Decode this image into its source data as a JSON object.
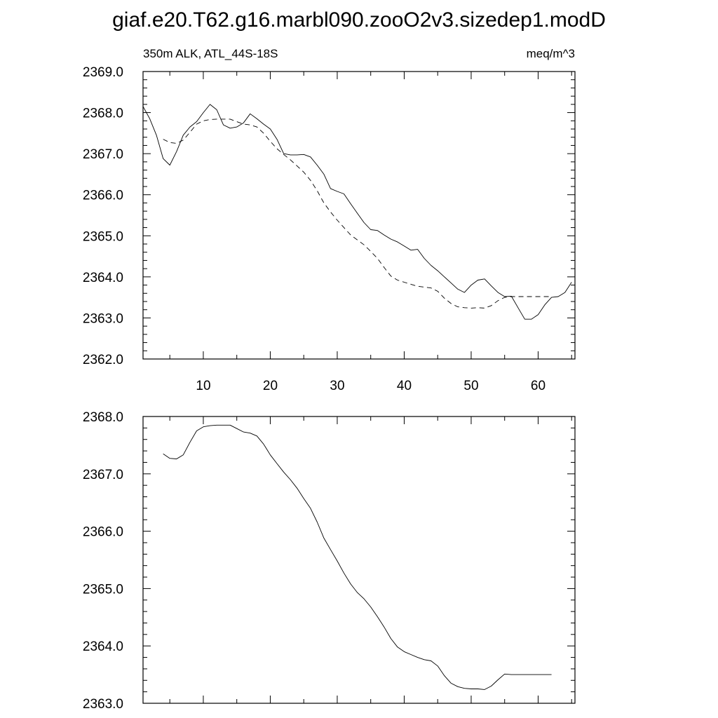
{
  "figure": {
    "title": "giaf.e20.T62.g16.marbl090.zooO2v3.sizedep1.modD"
  },
  "chart_data": [
    {
      "type": "line",
      "left_label": "350m ALK, ATL_44S-18S",
      "right_label": "meq/m^3",
      "xlim": [
        1,
        65.5
      ],
      "ylim": [
        2362.0,
        2369.0
      ],
      "xticks": [
        10,
        20,
        30,
        40,
        50,
        60
      ],
      "xtick_labels": [
        "10",
        "20",
        "30",
        "40",
        "50",
        "60"
      ],
      "yticks": [
        2362.0,
        2363.0,
        2364.0,
        2365.0,
        2366.0,
        2367.0,
        2368.0,
        2369.0
      ],
      "ytick_labels": [
        "2362.0",
        "2363.0",
        "2364.0",
        "2365.0",
        "2366.0",
        "2367.0",
        "2368.0",
        "2369.0"
      ],
      "grid": false,
      "series": [
        {
          "style": "solid",
          "x": [
            1,
            2,
            3,
            4,
            5,
            6,
            7,
            8,
            9,
            10,
            11,
            12,
            13,
            14,
            15,
            16,
            17,
            18,
            19,
            20,
            21,
            22,
            23,
            24,
            25,
            26,
            27,
            28,
            29,
            30,
            31,
            32,
            33,
            34,
            35,
            36,
            37,
            38,
            39,
            40,
            41,
            42,
            43,
            44,
            45,
            46,
            47,
            48,
            49,
            50,
            51,
            52,
            53,
            54,
            55,
            56,
            57,
            58,
            59,
            60,
            61,
            62,
            63,
            64,
            65
          ],
          "values": [
            2368.15,
            2367.85,
            2367.45,
            2366.88,
            2366.72,
            2367.05,
            2367.45,
            2367.65,
            2367.78,
            2368.0,
            2368.2,
            2368.07,
            2367.7,
            2367.62,
            2367.65,
            2367.75,
            2367.97,
            2367.85,
            2367.72,
            2367.6,
            2367.35,
            2367.0,
            2366.97,
            2366.97,
            2366.98,
            2366.92,
            2366.72,
            2366.5,
            2366.15,
            2366.08,
            2366.02,
            2365.78,
            2365.55,
            2365.32,
            2365.15,
            2365.13,
            2365.02,
            2364.92,
            2364.85,
            2364.75,
            2364.65,
            2364.67,
            2364.45,
            2364.28,
            2364.15,
            2364.0,
            2363.85,
            2363.7,
            2363.62,
            2363.8,
            2363.92,
            2363.95,
            2363.78,
            2363.62,
            2363.52,
            2363.53,
            2363.25,
            2362.97,
            2362.97,
            2363.08,
            2363.32,
            2363.5,
            2363.52,
            2363.62,
            2363.87
          ]
        },
        {
          "style": "dashed",
          "x": [
            4,
            5,
            6,
            7,
            8,
            9,
            10,
            11,
            12,
            13,
            14,
            15,
            16,
            17,
            18,
            19,
            20,
            21,
            22,
            23,
            24,
            25,
            26,
            27,
            28,
            29,
            30,
            31,
            32,
            33,
            34,
            35,
            36,
            37,
            38,
            39,
            40,
            41,
            42,
            43,
            44,
            45,
            46,
            47,
            48,
            49,
            50,
            51,
            52,
            53,
            54,
            55,
            56,
            57,
            58,
            59,
            60,
            61,
            62
          ],
          "values": [
            2367.35,
            2367.27,
            2367.25,
            2367.33,
            2367.52,
            2367.72,
            2367.8,
            2367.83,
            2367.84,
            2367.84,
            2367.84,
            2367.78,
            2367.72,
            2367.7,
            2367.65,
            2367.5,
            2367.3,
            2367.12,
            2366.98,
            2366.85,
            2366.7,
            2366.55,
            2366.35,
            2366.1,
            2365.8,
            2365.58,
            2365.38,
            2365.2,
            2365.02,
            2364.9,
            2364.78,
            2364.62,
            2364.45,
            2364.23,
            2364.02,
            2363.92,
            2363.87,
            2363.82,
            2363.77,
            2363.75,
            2363.73,
            2363.65,
            2363.48,
            2363.35,
            2363.27,
            2363.25,
            2363.24,
            2363.25,
            2363.24,
            2363.3,
            2363.42,
            2363.5,
            2363.52,
            2363.52,
            2363.52,
            2363.52,
            2363.52,
            2363.52,
            2363.52
          ]
        }
      ]
    },
    {
      "type": "line",
      "xlim": [
        1,
        65.5
      ],
      "ylim": [
        2363.0,
        2368.0
      ],
      "xticks": [
        10,
        20,
        30,
        40,
        50,
        60
      ],
      "yticks": [
        2363.0,
        2364.0,
        2365.0,
        2366.0,
        2367.0,
        2368.0
      ],
      "ytick_labels": [
        "2363.0",
        "2364.0",
        "2365.0",
        "2366.0",
        "2367.0",
        "2368.0"
      ],
      "grid": false,
      "series": [
        {
          "style": "solid",
          "x": [
            4,
            5,
            6,
            7,
            8,
            9,
            10,
            11,
            12,
            13,
            14,
            15,
            16,
            17,
            18,
            19,
            20,
            21,
            22,
            23,
            24,
            25,
            26,
            27,
            28,
            29,
            30,
            31,
            32,
            33,
            34,
            35,
            36,
            37,
            38,
            39,
            40,
            41,
            42,
            43,
            44,
            45,
            46,
            47,
            48,
            49,
            50,
            51,
            52,
            53,
            54,
            55,
            56,
            57,
            58,
            59,
            60,
            61,
            62
          ],
          "values": [
            2367.35,
            2367.27,
            2367.26,
            2367.33,
            2367.55,
            2367.75,
            2367.82,
            2367.84,
            2367.85,
            2367.85,
            2367.85,
            2367.79,
            2367.73,
            2367.71,
            2367.66,
            2367.52,
            2367.33,
            2367.18,
            2367.03,
            2366.9,
            2366.75,
            2366.57,
            2366.4,
            2366.16,
            2365.88,
            2365.68,
            2365.48,
            2365.27,
            2365.08,
            2364.93,
            2364.82,
            2364.68,
            2364.51,
            2364.33,
            2364.13,
            2363.98,
            2363.9,
            2363.85,
            2363.8,
            2363.76,
            2363.74,
            2363.65,
            2363.48,
            2363.35,
            2363.29,
            2363.26,
            2363.25,
            2363.25,
            2363.24,
            2363.3,
            2363.41,
            2363.51,
            2363.5,
            2363.5,
            2363.5,
            2363.5,
            2363.5,
            2363.5,
            2363.5
          ]
        }
      ]
    }
  ]
}
